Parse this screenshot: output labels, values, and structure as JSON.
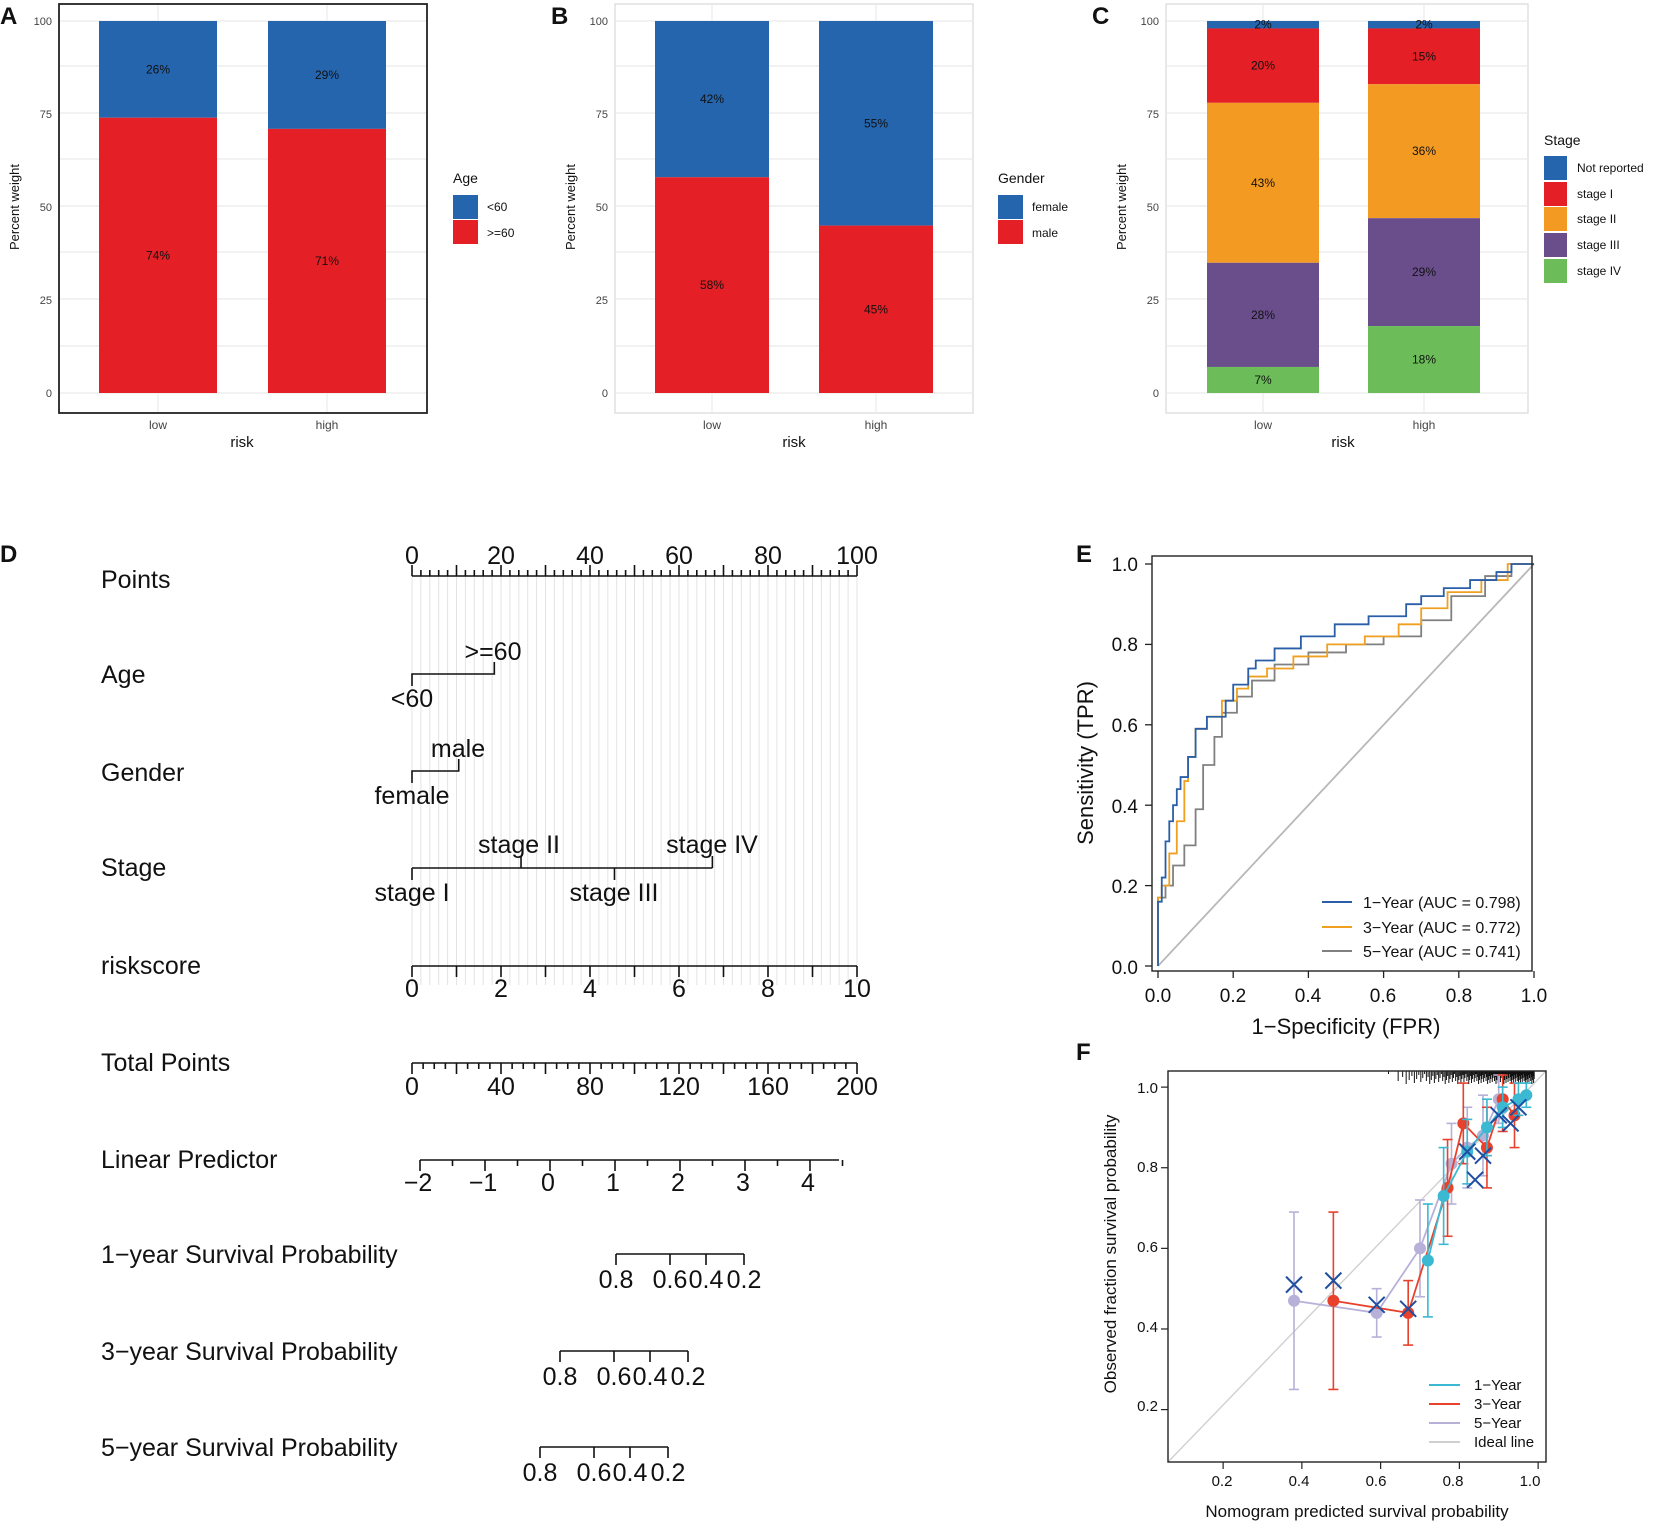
{
  "chart_data": [
    {
      "id": "A",
      "panel_letter": "A",
      "type": "bar",
      "stacked": true,
      "xlabel": "risk",
      "ylabel": "Percent weight",
      "categories": [
        "low",
        "high"
      ],
      "ylim": [
        0,
        100
      ],
      "yticks": [
        "0",
        "25",
        "50",
        "75",
        "100"
      ],
      "legend_title": "Age",
      "series": [
        {
          "name": "<60",
          "values": [
            26,
            29
          ],
          "color": "#2465ae",
          "labels": [
            "26%",
            "29%"
          ]
        },
        {
          "name": ">=60",
          "values": [
            74,
            71
          ],
          "color": "#e41f26",
          "labels": [
            "74%",
            "71%"
          ]
        }
      ]
    },
    {
      "id": "B",
      "panel_letter": "B",
      "type": "bar",
      "stacked": true,
      "xlabel": "risk",
      "ylabel": "Percent weight",
      "categories": [
        "low",
        "high"
      ],
      "ylim": [
        0,
        100
      ],
      "yticks": [
        "0",
        "25",
        "50",
        "75",
        "100"
      ],
      "legend_title": "Gender",
      "series": [
        {
          "name": "female",
          "values": [
            42,
            55
          ],
          "color": "#2465ae",
          "labels": [
            "42%",
            "55%"
          ]
        },
        {
          "name": "male",
          "values": [
            58,
            45
          ],
          "color": "#e41f26",
          "labels": [
            "58%",
            "45%"
          ]
        }
      ]
    },
    {
      "id": "C",
      "panel_letter": "C",
      "type": "bar",
      "stacked": true,
      "xlabel": "risk",
      "ylabel": "Percent weight",
      "categories": [
        "low",
        "high"
      ],
      "ylim": [
        0,
        100
      ],
      "yticks": [
        "0",
        "25",
        "50",
        "75",
        "100"
      ],
      "legend_title": "Stage",
      "series": [
        {
          "name": "Not reported",
          "values": [
            2,
            2
          ],
          "color": "#2465ae",
          "labels": [
            "2%",
            "2%"
          ]
        },
        {
          "name": "stage I",
          "values": [
            20,
            15
          ],
          "color": "#e41f26",
          "labels": [
            "20%",
            "15%"
          ]
        },
        {
          "name": "stage II",
          "values": [
            43,
            36
          ],
          "color": "#f39a22",
          "labels": [
            "43%",
            "36%"
          ]
        },
        {
          "name": "stage III",
          "values": [
            28,
            29
          ],
          "color": "#6a4e8c",
          "labels": [
            "28%",
            "29%"
          ]
        },
        {
          "name": "stage IV",
          "values": [
            7,
            18
          ],
          "color": "#6cbd5a",
          "labels": [
            "7%",
            "18%"
          ]
        }
      ]
    },
    {
      "id": "D",
      "panel_letter": "D",
      "type": "nomogram",
      "rows": [
        {
          "label": "Points",
          "ticks": [
            "0",
            "20",
            "40",
            "60",
            "80",
            "100"
          ]
        },
        {
          "label": "Age",
          "levels": [
            {
              "name": "<60",
              "points": 0
            },
            {
              "name": ">=60",
              "points": 18.5
            }
          ]
        },
        {
          "label": "Gender",
          "levels": [
            {
              "name": "female",
              "points": 0
            },
            {
              "name": "male",
              "points": 10.5
            }
          ]
        },
        {
          "label": "Stage",
          "levels": [
            {
              "name": "stage I",
              "points": 0
            },
            {
              "name": "stage II",
              "points": 24.5
            },
            {
              "name": "stage III",
              "points": 45.5
            },
            {
              "name": "stage IV",
              "points": 67.5
            }
          ]
        },
        {
          "label": "riskscore",
          "ticks": [
            "0",
            "2",
            "4",
            "6",
            "8",
            "10"
          ]
        },
        {
          "label": "Total Points",
          "ticks": [
            "0",
            "40",
            "80",
            "120",
            "160",
            "200"
          ]
        },
        {
          "label": "Linear Predictor",
          "ticks": [
            "−2",
            "−1",
            "0",
            "1",
            "2",
            "3",
            "4"
          ]
        },
        {
          "label": "1−year Survival Probability",
          "ticks": [
            "0.8",
            "0.6",
            "0.4",
            "0.2"
          ]
        },
        {
          "label": "3−year Survival Probability",
          "ticks": [
            "0.8",
            "0.6",
            "0.4",
            "0.2"
          ]
        },
        {
          "label": "5−year Survival Probability",
          "ticks": [
            "0.8",
            "0.6",
            "0.4",
            "0.2"
          ]
        }
      ]
    },
    {
      "id": "E",
      "panel_letter": "E",
      "type": "line",
      "title": "",
      "xlabel": "1−Specificity (FPR)",
      "ylabel": "Sensitivity (TPR)",
      "xlim": [
        0,
        1
      ],
      "ylim": [
        0,
        1
      ],
      "xticks": [
        "0.0",
        "0.2",
        "0.4",
        "0.6",
        "0.8",
        "1.0"
      ],
      "yticks": [
        "0.0",
        "0.2",
        "0.4",
        "0.6",
        "0.8",
        "1.0"
      ],
      "series": [
        {
          "name": "1−Year (AUC = 0.798)",
          "color": "#2a5fa8",
          "x": [
            0,
            0,
            0.01,
            0.01,
            0.02,
            0.02,
            0.03,
            0.03,
            0.04,
            0.04,
            0.05,
            0.05,
            0.06,
            0.06,
            0.08,
            0.08,
            0.1,
            0.1,
            0.13,
            0.13,
            0.18,
            0.18,
            0.2,
            0.2,
            0.24,
            0.24,
            0.26,
            0.26,
            0.31,
            0.31,
            0.38,
            0.38,
            0.47,
            0.47,
            0.56,
            0.56,
            0.66,
            0.66,
            0.7,
            0.7,
            0.76,
            0.76,
            0.83,
            0.83,
            0.9,
            0.9,
            0.94,
            0.94,
            1
          ],
          "y": [
            0,
            0.16,
            0.16,
            0.22,
            0.22,
            0.31,
            0.31,
            0.36,
            0.36,
            0.4,
            0.4,
            0.44,
            0.44,
            0.47,
            0.47,
            0.52,
            0.52,
            0.59,
            0.59,
            0.62,
            0.62,
            0.66,
            0.66,
            0.7,
            0.7,
            0.74,
            0.74,
            0.76,
            0.76,
            0.79,
            0.79,
            0.82,
            0.82,
            0.85,
            0.85,
            0.87,
            0.87,
            0.9,
            0.9,
            0.92,
            0.92,
            0.94,
            0.94,
            0.96,
            0.96,
            0.98,
            0.98,
            1,
            1
          ]
        },
        {
          "name": "3−Year (AUC = 0.772)",
          "color": "#f0a020",
          "x": [
            0,
            0,
            0.01,
            0.01,
            0.03,
            0.03,
            0.05,
            0.05,
            0.07,
            0.07,
            0.08,
            0.08,
            0.1,
            0.1,
            0.13,
            0.13,
            0.17,
            0.17,
            0.21,
            0.21,
            0.24,
            0.24,
            0.29,
            0.29,
            0.36,
            0.36,
            0.45,
            0.45,
            0.55,
            0.55,
            0.64,
            0.64,
            0.7,
            0.7,
            0.77,
            0.77,
            0.86,
            0.86,
            0.93,
            0.93,
            1
          ],
          "y": [
            0,
            0.17,
            0.17,
            0.2,
            0.2,
            0.28,
            0.28,
            0.36,
            0.36,
            0.46,
            0.46,
            0.52,
            0.52,
            0.59,
            0.59,
            0.62,
            0.62,
            0.66,
            0.66,
            0.69,
            0.69,
            0.72,
            0.72,
            0.74,
            0.74,
            0.77,
            0.77,
            0.8,
            0.8,
            0.82,
            0.82,
            0.85,
            0.85,
            0.89,
            0.89,
            0.93,
            0.93,
            0.96,
            0.96,
            1,
            1
          ]
        },
        {
          "name": "5−Year (AUC = 0.741)",
          "color": "#808080",
          "x": [
            0,
            0,
            0.02,
            0.02,
            0.04,
            0.04,
            0.07,
            0.07,
            0.1,
            0.1,
            0.12,
            0.12,
            0.15,
            0.15,
            0.17,
            0.17,
            0.21,
            0.21,
            0.25,
            0.25,
            0.31,
            0.31,
            0.4,
            0.4,
            0.5,
            0.5,
            0.6,
            0.6,
            0.7,
            0.7,
            0.78,
            0.78,
            0.87,
            0.87,
            0.94,
            0.94,
            1
          ],
          "y": [
            0,
            0.17,
            0.17,
            0.2,
            0.2,
            0.25,
            0.25,
            0.3,
            0.3,
            0.39,
            0.39,
            0.5,
            0.5,
            0.57,
            0.57,
            0.63,
            0.63,
            0.67,
            0.67,
            0.71,
            0.71,
            0.75,
            0.75,
            0.78,
            0.78,
            0.8,
            0.8,
            0.82,
            0.82,
            0.86,
            0.86,
            0.92,
            0.92,
            0.97,
            0.97,
            1,
            1
          ]
        },
        {
          "name": "diagonal",
          "color": "#b8b8b8",
          "x": [
            0,
            1
          ],
          "y": [
            0,
            1
          ]
        }
      ]
    },
    {
      "id": "F",
      "panel_letter": "F",
      "type": "line",
      "title": "",
      "xlabel": "Nomogram predicted survival probability",
      "ylabel": "Observed fraction survival probability",
      "xlim": [
        0.06,
        1.02
      ],
      "ylim": [
        0.07,
        1.04
      ],
      "xticks": [
        "0.2",
        "0.4",
        "0.6",
        "0.8",
        "1.0"
      ],
      "yticks": [
        "0.2",
        "0.4",
        "0.6",
        "0.8",
        "1.0"
      ],
      "series": [
        {
          "name": "1−Year",
          "color": "#3bb8d2",
          "x": [
            0.72,
            0.76,
            0.82,
            0.87,
            0.91,
            0.95,
            0.97
          ],
          "y": [
            0.57,
            0.73,
            0.84,
            0.9,
            0.95,
            0.97,
            0.98
          ],
          "err": [
            0.14,
            0.12,
            0.08,
            0.07,
            0.05,
            0.04,
            0.03
          ]
        },
        {
          "name": "3−Year",
          "color": "#e8412c",
          "x": [
            0.48,
            0.67,
            0.77,
            0.81,
            0.87,
            0.91,
            0.94
          ],
          "y": [
            0.47,
            0.44,
            0.75,
            0.91,
            0.85,
            0.97,
            0.93
          ],
          "err": [
            0.22,
            0.08,
            0.12,
            0.1,
            0.1,
            0.08,
            0.08
          ]
        },
        {
          "name": "5−Year",
          "color": "#b7b0d8",
          "x": [
            0.38,
            0.59,
            0.7,
            0.78,
            0.82,
            0.86,
            0.9
          ],
          "y": [
            0.47,
            0.44,
            0.6,
            0.81,
            0.85,
            0.88,
            0.97
          ],
          "err": [
            0.22,
            0.06,
            0.12,
            0.1,
            0.1,
            0.1,
            0.06
          ]
        },
        {
          "name": "Ideal line",
          "color": "#d0d0d0",
          "x": [
            0.06,
            1.02
          ],
          "y": [
            0.07,
            1.04
          ]
        }
      ],
      "crosses": [
        {
          "x": 0.38,
          "y": 0.51
        },
        {
          "x": 0.48,
          "y": 0.52
        },
        {
          "x": 0.59,
          "y": 0.46
        },
        {
          "x": 0.67,
          "y": 0.45
        },
        {
          "x": 0.82,
          "y": 0.84
        },
        {
          "x": 0.84,
          "y": 0.77
        },
        {
          "x": 0.86,
          "y": 0.83
        },
        {
          "x": 0.9,
          "y": 0.93
        },
        {
          "x": 0.93,
          "y": 0.91
        },
        {
          "x": 0.95,
          "y": 0.95
        }
      ]
    }
  ]
}
